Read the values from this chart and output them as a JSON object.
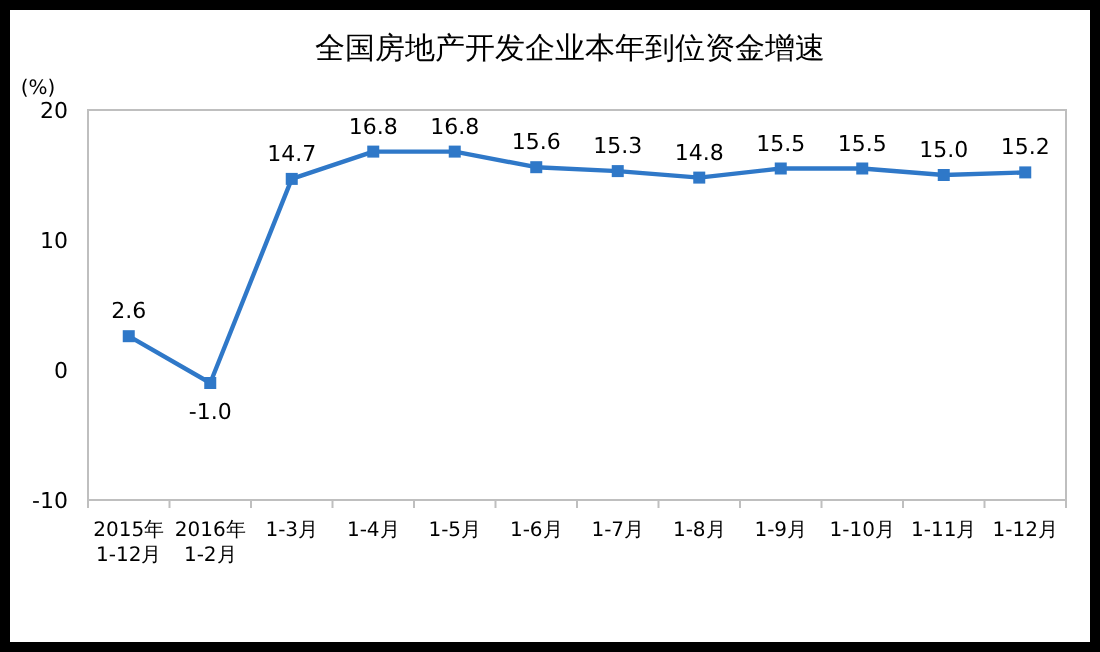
{
  "chart_data": {
    "type": "line",
    "title": "全国房地产开发企业本年到位资金增速",
    "ylabel": "(%)",
    "categories": [
      "2015年\n1-12月",
      "2016年\n1-2月",
      "1-3月",
      "1-4月",
      "1-5月",
      "1-6月",
      "1-7月",
      "1-8月",
      "1-9月",
      "1-10月",
      "1-11月",
      "1-12月"
    ],
    "series": [
      {
        "color": "#2f78c8",
        "values": [
          2.6,
          -1.0,
          14.7,
          16.8,
          16.8,
          15.6,
          15.3,
          14.8,
          15.5,
          15.5,
          15.0,
          15.2
        ]
      }
    ],
    "value_labels": [
      "2.6",
      "-1.0",
      "14.7",
      "16.8",
      "16.8",
      "15.6",
      "15.3",
      "14.8",
      "15.5",
      "15.5",
      "15.0",
      "15.2"
    ],
    "ylim": [
      -10,
      20
    ],
    "yticks": [
      -10,
      0,
      10,
      20
    ],
    "marker": "square",
    "grid": false
  }
}
